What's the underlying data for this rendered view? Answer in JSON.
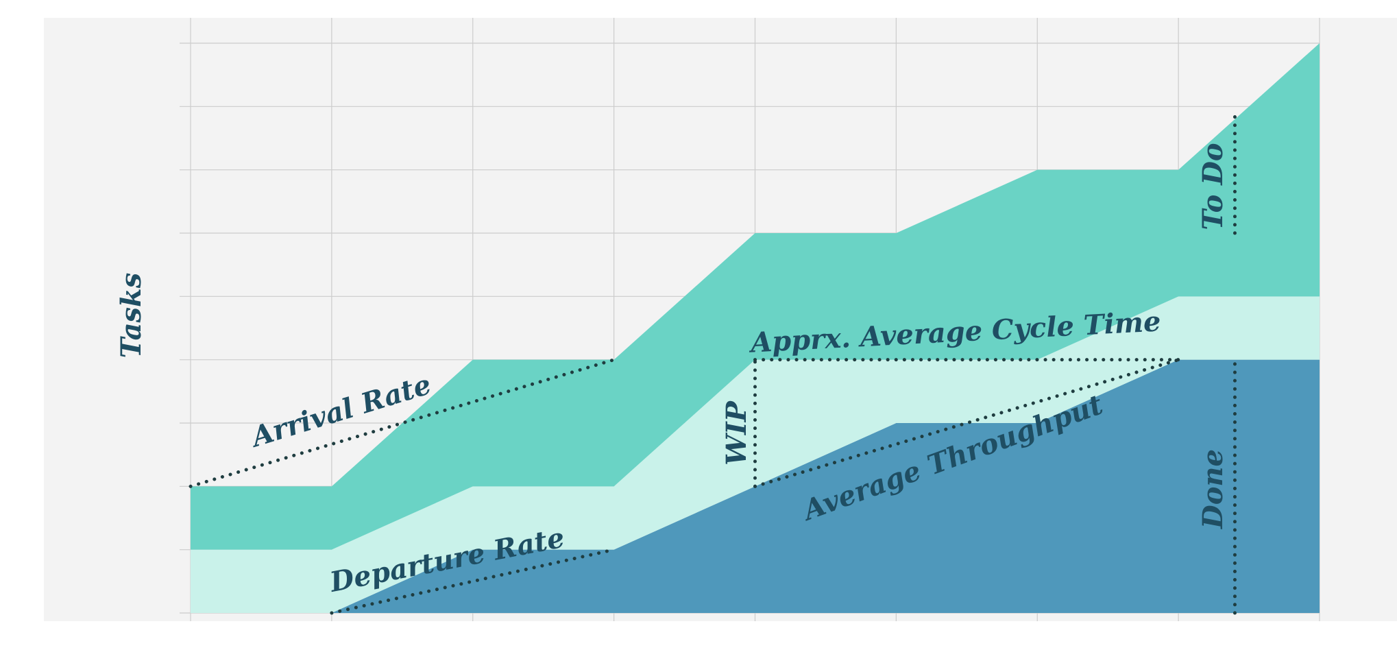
{
  "chart_data": {
    "type": "area",
    "title": "",
    "xlabel": "",
    "ylabel": "Tasks",
    "x": [
      0,
      1,
      2,
      3,
      4,
      5,
      6,
      7,
      8
    ],
    "xlim": [
      0,
      8
    ],
    "ylim": [
      0,
      9
    ],
    "grid": true,
    "stacked": true,
    "series": [
      {
        "name": "Done",
        "color": "#4f98bb",
        "values": [
          0,
          0,
          1,
          1,
          2,
          3,
          3,
          4,
          4
        ]
      },
      {
        "name": "WIP",
        "color": "#c9f2ea",
        "values": [
          1,
          1,
          1,
          1,
          2,
          1,
          1,
          1,
          1
        ]
      },
      {
        "name": "To Do",
        "color": "#6ad3c5",
        "values": [
          1,
          1,
          2,
          2,
          2,
          2,
          3,
          2,
          4
        ]
      }
    ],
    "annotations": {
      "arrival_rate": "Arrival Rate",
      "departure_rate": "Departure Rate",
      "cycle_time": "Apprx. Average Cycle Time",
      "wip": "WIP",
      "throughput": "Average Throughput",
      "todo": "To Do",
      "done": "Done"
    },
    "colors": {
      "plot_bg": "#f3f3f3",
      "grid": "#cccccc",
      "label_text": "#1f4e63",
      "dots": "#1f3d40"
    }
  }
}
